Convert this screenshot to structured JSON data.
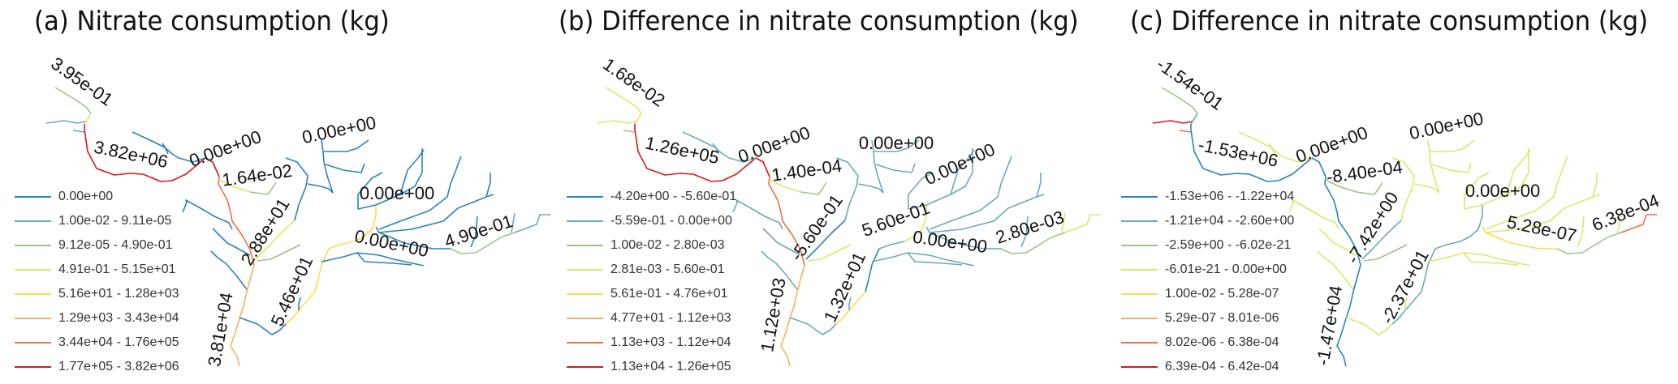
{
  "colors": [
    "#2b83ba",
    "#6aaab9",
    "#9fc28b",
    "#dbe86c",
    "#fddc4a",
    "#fdae61",
    "#f46d43",
    "#d7191c"
  ],
  "panels": [
    {
      "title": "(a)  Nitrate consumption (kg)",
      "legend": [
        "0.00e+00",
        "1.00e-02 - 9.11e-05",
        "9.12e-05 - 4.90e-01",
        "4.91e-01 - 5.15e+01",
        "5.16e+01 - 1.28e+03",
        "1.29e+03 - 3.43e+04",
        "3.44e+04 - 1.76e+05",
        "1.77e+05 - 3.82e+06"
      ],
      "labels": [
        "3.95e-01",
        "3.82e+06",
        "0.00e+00",
        "1.64e-02",
        "0.00e+00",
        "0.00e+00",
        "2.88e+01",
        "0.00e+00",
        "4.90e-01",
        "5.46e+01",
        "3.81e+04"
      ],
      "reach_class": {
        "headwater-nw": 2,
        "headwater-w": 1,
        "tiny-w": 1,
        "upper-link": 3,
        "main-red": 7,
        "main-mid": 6,
        "main-lower": 5,
        "trib-north1": 0,
        "trib-north1b": 0,
        "trib-164": 3,
        "trib-164b": 2,
        "trib-west1": 0,
        "trib-west2": 0,
        "trib-west3": 0,
        "trib-south": 0,
        "t288-low": 3,
        "t288-up": 0,
        "t288-br": 0,
        "t288-side": 2,
        "north-tree": 0,
        "north-br1": 0,
        "north-br2": 0,
        "r546-low": 4,
        "r546-mid": 4,
        "r546-up": 4,
        "r546-top": 4,
        "r546-br": 0,
        "east-up1": 0,
        "east-up2": 0,
        "east-up3": 0,
        "east-b1": 0,
        "east-b2": 0,
        "east-b2s": 0,
        "east-main-a": 0,
        "east-main-b": 2,
        "east-main-c": 1,
        "east-main-br1": 0,
        "east-main-br2": 1,
        "east-low1": 0,
        "east-low2": 0
      }
    },
    {
      "title": "(b) Difference in nitrate consumption (kg)",
      "legend": [
        "-4.20e+00 - -5.60e-01",
        "-5.59e-01 - 0.00e+00",
        "1.00e-02 - 2.80e-03",
        "2.81e-03 - 5.60e-01",
        "5.61e-01 - 4.76e+01",
        "4.77e+01 - 1.12e+03",
        "1.13e+03 - 1.12e+04",
        "1.13e+04 - 1.26e+05"
      ],
      "labels": [
        "1.68e-02",
        "1.26e+05",
        "0.00e+00",
        "1.40e-04",
        "0.00e+00",
        "0.00e+00",
        "-5.60e-01",
        "5.60e-01",
        "0.00e+00",
        "2.80e-03",
        "1.32e+01",
        "1.12e+03"
      ],
      "reach_class": {
        "headwater-nw": 3,
        "headwater-w": 3,
        "tiny-w": 2,
        "upper-link": 4,
        "main-red": 7,
        "main-mid": 6,
        "main-lower": 5,
        "trib-north1": 1,
        "trib-north1b": 1,
        "trib-164": 3,
        "trib-164b": 2,
        "trib-west1": 1,
        "trib-west2": 1,
        "trib-west3": 1,
        "trib-south": 1,
        "t288-low": 0,
        "t288-up": 1,
        "t288-br": 1,
        "t288-side": 3,
        "north-tree": 1,
        "north-br1": 1,
        "north-br2": 1,
        "r546-low": 4,
        "r546-mid": 0,
        "r546-up": 1,
        "r546-top": 3,
        "r546-br": 1,
        "east-up1": 1,
        "east-up2": 1,
        "east-up3": 1,
        "east-b1": 1,
        "east-b2": 1,
        "east-b2s": 1,
        "east-main-a": 1,
        "east-main-b": 2,
        "east-main-c": 3,
        "east-main-br1": 1,
        "east-main-br2": 3,
        "east-low1": 1,
        "east-low2": 1
      }
    },
    {
      "title": "(c) Difference in nitrate consumption (kg)",
      "legend": [
        "-1.53e+06 - -1.22e+04",
        "-1.21e+04 - -2.60e+00",
        "-2.59e+00 - -6.02e-21",
        "-6.01e-21 - 0.00e+00",
        "1.00e-02 - 5.28e-07",
        "5.29e-07 - 8.01e-06",
        "8.02e-06 - 6.38e-04",
        "6.39e-04 - 6.42e-04"
      ],
      "labels": [
        "-1.54e-01",
        "-1.53e+06",
        "0.00e+00",
        "-8.40e-04",
        "0.00e+00",
        "0.00e+00",
        "-7.42e+00",
        "5.28e-07",
        "6.38e-04",
        "-2.37e+01",
        "-1.47e+04"
      ],
      "reach_class": {
        "headwater-nw": 2,
        "headwater-w": 7,
        "tiny-w": 6,
        "upper-link": 1,
        "main-red": 0,
        "main-mid": 0,
        "main-lower": 0,
        "trib-north1": 3,
        "trib-north1b": 3,
        "trib-164": 2,
        "trib-164b": 2,
        "trib-west1": 3,
        "trib-west2": 3,
        "trib-west3": 3,
        "trib-south": 3,
        "t288-low": 1,
        "t288-up": 3,
        "t288-br": 3,
        "t288-side": 2,
        "north-tree": 3,
        "north-br1": 3,
        "north-br2": 3,
        "r546-low": 1,
        "r546-mid": 1,
        "r546-up": 1,
        "r546-top": 1,
        "r546-br": 3,
        "east-up1": 3,
        "east-up2": 3,
        "east-up3": 3,
        "east-b1": 3,
        "east-b2": 3,
        "east-b2s": 3,
        "east-main-a": 4,
        "east-main-b": 2,
        "east-main-c": 6,
        "east-main-br1": 3,
        "east-main-br2": 3,
        "east-low1": 3,
        "east-low2": 3
      }
    }
  ]
}
